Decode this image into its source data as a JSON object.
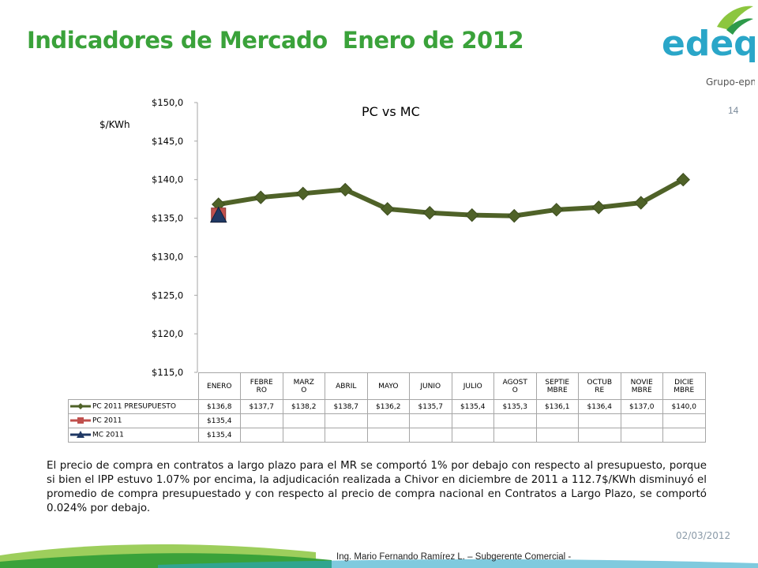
{
  "header": {
    "title": "Indicadores de Mercado  Enero de 2012",
    "logo_text": "edeq",
    "logo_subtext": "Grupo-epm",
    "page_number": "14"
  },
  "colors": {
    "title": "#3aa23a",
    "pc_presupuesto": "#4f6228",
    "pc_2011": "#c0504d",
    "mc_2011": "#1f3864"
  },
  "chart_data": {
    "type": "line",
    "title": "PC vs MC",
    "ylabel": "$/KWh",
    "ylim": [
      115,
      150
    ],
    "yticks": [
      "$150,0",
      "$145,0",
      "$140,0",
      "$135,0",
      "$130,0",
      "$125,0",
      "$120,0",
      "$115,0"
    ],
    "categories": [
      "ENERO",
      "FEBRERO",
      "MARZO",
      "ABRIL",
      "MAYO",
      "JUNIO",
      "JULIO",
      "AGOSTO",
      "SEPTIEMBRE",
      "OCTUBRE",
      "NOVIEMBRE",
      "DICIEMBRE"
    ],
    "category_lines": [
      [
        "ENERO"
      ],
      [
        "FEBRE",
        "RO"
      ],
      [
        "MARZ",
        "O"
      ],
      [
        "ABRIL"
      ],
      [
        "MAYO"
      ],
      [
        "JUNIO"
      ],
      [
        "JULIO"
      ],
      [
        "AGOST",
        "O"
      ],
      [
        "SEPTIE",
        "MBRE"
      ],
      [
        "OCTUB",
        "RE"
      ],
      [
        "NOVIE",
        "MBRE"
      ],
      [
        "DICIE",
        "MBRE"
      ]
    ],
    "series": [
      {
        "name": "PC 2011 PRESUPUESTO",
        "values": [
          136.8,
          137.7,
          138.2,
          138.7,
          136.2,
          135.7,
          135.4,
          135.3,
          136.1,
          136.4,
          137.0,
          140.0
        ],
        "labels": [
          "$136,8",
          "$137,7",
          "$138,2",
          "$138,7",
          "$136,2",
          "$135,7",
          "$135,4",
          "$135,3",
          "$136,1",
          "$136,4",
          "$137,0",
          "$140,0"
        ]
      },
      {
        "name": "PC 2011",
        "values": [
          135.4,
          null,
          null,
          null,
          null,
          null,
          null,
          null,
          null,
          null,
          null,
          null
        ],
        "labels": [
          "$135,4",
          "",
          "",
          "",
          "",
          "",
          "",
          "",
          "",
          "",
          "",
          ""
        ]
      },
      {
        "name": "MC 2011",
        "values": [
          135.4,
          null,
          null,
          null,
          null,
          null,
          null,
          null,
          null,
          null,
          null,
          null
        ],
        "labels": [
          "$135,4",
          "",
          "",
          "",
          "",
          "",
          "",
          "",
          "",
          "",
          "",
          ""
        ]
      }
    ],
    "grid": false,
    "legend": "data-table"
  },
  "description": "El precio de compra en contratos a largo plazo para el MR se comportó 1% por debajo con respecto al presupuesto, porque si bien el IPP estuvo 1.07% por encima, la adjudicación realizada a Chivor en diciembre de 2011 a 112.7$/KWh disminuyó el promedio de compra presupuestado y con respecto al precio de compra nacional en Contratos a Largo Plazo, se comportó 0.024% por debajo.",
  "footer": {
    "date": "02/03/2012",
    "author": "Ing. Mario Fernando Ramírez L. – Subgerente Comercial -"
  }
}
